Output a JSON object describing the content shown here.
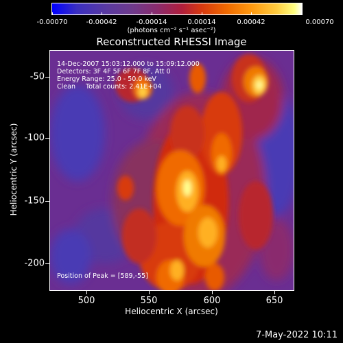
{
  "colorbar": {
    "ticks": [
      "-0.00070",
      "-0.00042",
      "-0.00014",
      "0.00014",
      "0.00042",
      "0.00070"
    ],
    "unit_label": "(photons cm⁻² s⁻¹ asec⁻²)"
  },
  "title": "Reconstructed RHESSI Image",
  "annotation": {
    "line1": "14-Dec-2007 15:03:12.000 to 15:09:12.000",
    "line2": "Detectors: 3F 4F 5F 6F 7F 8F, Att 0",
    "line3": "Energy Range: 25.0 - 50.0 keV",
    "line4": "Clean     Total counts: 2.41E+04",
    "peak": "Position of Peak = [589,-55]"
  },
  "axes": {
    "xlabel": "Heliocentric X (arcsec)",
    "ylabel": "Heliocentric Y (arcsec)",
    "xticks": [
      "500",
      "550",
      "600",
      "650"
    ],
    "yticks": [
      "-50",
      "-100",
      "-150",
      "-200"
    ]
  },
  "datestamp": "7-May-2022 10:11"
}
